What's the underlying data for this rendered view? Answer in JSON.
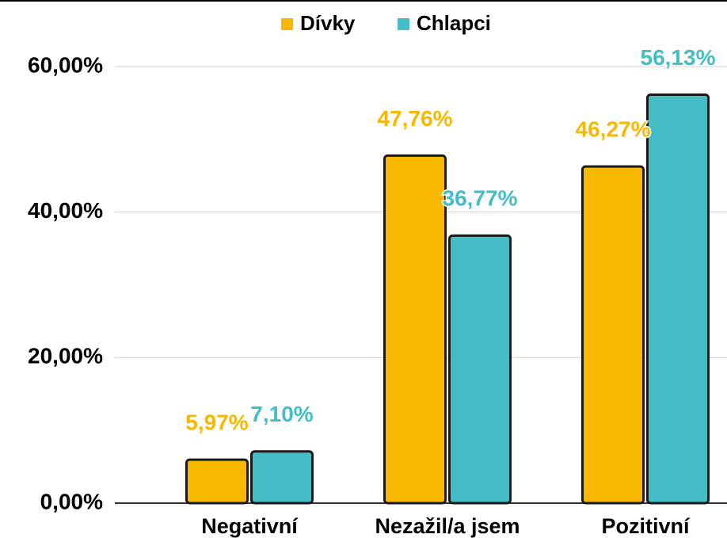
{
  "chart_data": {
    "type": "bar",
    "categories": [
      "Negativní",
      "Nezažil/a jsem",
      "Pozitivní"
    ],
    "series": [
      {
        "name": "Dívky",
        "color": "#f9b800",
        "values": [
          5.97,
          47.76,
          46.27
        ],
        "value_labels": [
          "5,97%",
          "47,76%",
          "46,27%"
        ]
      },
      {
        "name": "Chlapci",
        "color": "#45bdc6",
        "values": [
          7.1,
          36.77,
          56.13
        ],
        "value_labels": [
          "7,10%",
          "36,77%",
          "56,13%"
        ]
      }
    ],
    "ylim": [
      0,
      60
    ],
    "yticks": [
      {
        "value": 0,
        "label": "0,00%"
      },
      {
        "value": 20,
        "label": "20,00%"
      },
      {
        "value": 40,
        "label": "40,00%"
      },
      {
        "value": 60,
        "label": "60,00%"
      }
    ],
    "grid": true,
    "legend": "top"
  }
}
